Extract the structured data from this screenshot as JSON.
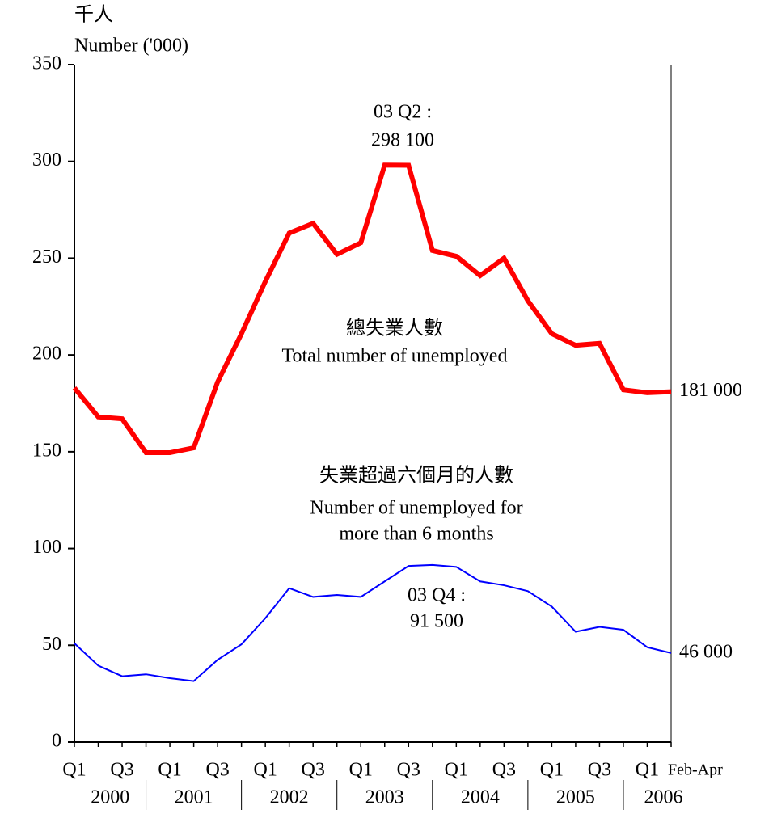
{
  "chart_data": {
    "type": "line",
    "y_label": [
      "千人",
      "Number ('000)"
    ],
    "categories": [
      "Q1",
      null,
      "Q3",
      null,
      "Q1",
      null,
      "Q3",
      null,
      "Q1",
      null,
      "Q3",
      null,
      "Q1",
      null,
      "Q3",
      null,
      "Q1",
      null,
      "Q3",
      null,
      "Q1",
      null,
      "Q3",
      null,
      "Q1",
      "Feb-Apr"
    ],
    "years": [
      "2000",
      "2001",
      "2002",
      "2003",
      "2004",
      "2005",
      "2006"
    ],
    "ylim": [
      0,
      350
    ],
    "yticks": [
      0,
      50,
      100,
      150,
      200,
      250,
      300,
      350
    ],
    "series": [
      {
        "name": [
          "總失業人數",
          "Total number of unemployed"
        ],
        "color": "#ff0000",
        "width": 6,
        "values": [
          183,
          168,
          167,
          149.5,
          149.5,
          152,
          186,
          211,
          238,
          263,
          268,
          252,
          258,
          298.1,
          298,
          254,
          251,
          241,
          250,
          228,
          211,
          205,
          206,
          182,
          180.5,
          181
        ],
        "value_labels": [
          null,
          null,
          null,
          null,
          null,
          null,
          null,
          null,
          null,
          null,
          null,
          null,
          null,
          null,
          null,
          null,
          null,
          null,
          null,
          null,
          null,
          null,
          null,
          null,
          null,
          "181 000"
        ],
        "annotation": [
          "03 Q2 :",
          "298 100"
        ]
      },
      {
        "name": [
          "失業超過六個月的人數",
          "Number of unemployed for",
          "more than 6 months"
        ],
        "color": "#0000ff",
        "width": 2,
        "values": [
          51,
          39.5,
          34,
          35,
          33,
          31.5,
          42.5,
          50.5,
          64,
          79.5,
          75,
          76,
          75,
          83,
          91,
          91.5,
          90.5,
          83,
          81,
          78,
          70,
          57,
          59.5,
          58,
          49,
          46
        ],
        "value_labels": [
          null,
          null,
          null,
          null,
          null,
          null,
          null,
          null,
          null,
          null,
          null,
          null,
          null,
          null,
          null,
          null,
          null,
          null,
          null,
          null,
          null,
          null,
          null,
          null,
          null,
          "46 000"
        ],
        "annotation": [
          "03 Q4 :",
          "91 500"
        ]
      }
    ]
  }
}
